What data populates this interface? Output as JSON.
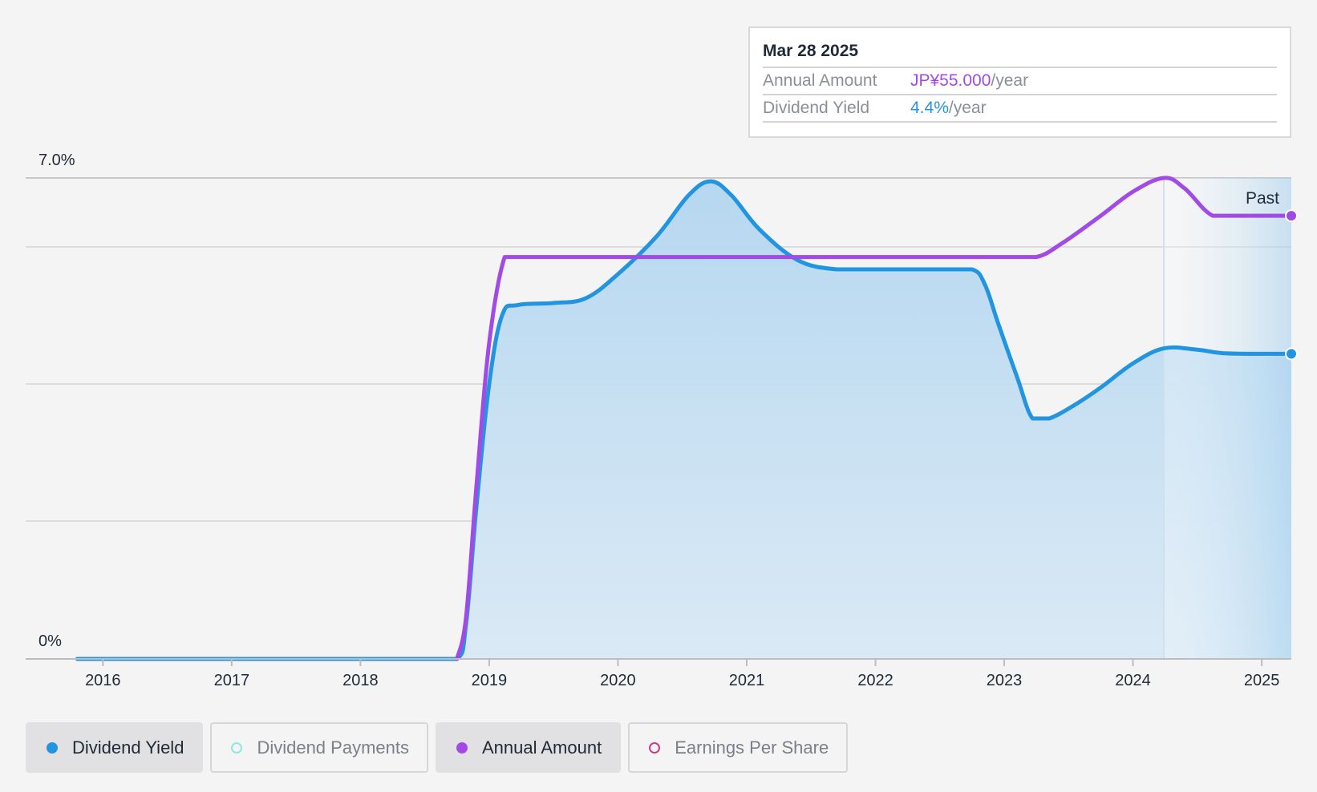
{
  "colors": {
    "yield": "#2394e0",
    "annual": "#a24ae6",
    "payments": "#8de8e0",
    "eps": "#cc3f86"
  },
  "tooltip": {
    "date": "Mar 28 2025",
    "rows": [
      {
        "key": "Annual Amount",
        "value": "JP¥55.000",
        "unit": "/year",
        "color": "purple"
      },
      {
        "key": "Dividend Yield",
        "value": "4.4%",
        "unit": "/year",
        "color": "blue"
      }
    ]
  },
  "legend": [
    {
      "label": "Dividend Yield",
      "active": true,
      "color": "#2394e0",
      "filled": true
    },
    {
      "label": "Dividend Payments",
      "active": false,
      "color": "#8de8e0",
      "filled": false
    },
    {
      "label": "Annual Amount",
      "active": true,
      "color": "#a24ae6",
      "filled": true
    },
    {
      "label": "Earnings Per Share",
      "active": false,
      "color": "#cc3f86",
      "filled": false
    }
  ],
  "chart_data": {
    "type": "line",
    "y_axis_labels": [
      "7.0%",
      "0%"
    ],
    "ylim": [
      0,
      7.0
    ],
    "xlim": [
      2015.4,
      2025.23
    ],
    "x_ticks": [
      2016,
      2017,
      2018,
      2019,
      2020,
      2021,
      2022,
      2023,
      2024,
      2025
    ],
    "grid": true,
    "past_region_start": 2024.24,
    "past_label": "Past",
    "series": [
      {
        "name": "Dividend Yield",
        "unit": "%",
        "area": true,
        "points": [
          [
            2015.8,
            0
          ],
          [
            2016.5,
            0
          ],
          [
            2017.5,
            0
          ],
          [
            2018.5,
            0
          ],
          [
            2018.75,
            0
          ],
          [
            2018.82,
            0.5
          ],
          [
            2018.9,
            2.2
          ],
          [
            2019.0,
            4.0
          ],
          [
            2019.1,
            5.0
          ],
          [
            2019.22,
            5.15
          ],
          [
            2019.5,
            5.18
          ],
          [
            2019.75,
            5.25
          ],
          [
            2020.0,
            5.6
          ],
          [
            2020.3,
            6.15
          ],
          [
            2020.55,
            6.75
          ],
          [
            2020.72,
            6.95
          ],
          [
            2020.88,
            6.75
          ],
          [
            2021.1,
            6.25
          ],
          [
            2021.4,
            5.8
          ],
          [
            2021.7,
            5.67
          ],
          [
            2022.0,
            5.67
          ],
          [
            2022.5,
            5.67
          ],
          [
            2022.75,
            5.67
          ],
          [
            2022.85,
            5.45
          ],
          [
            2022.95,
            4.9
          ],
          [
            2023.1,
            4.1
          ],
          [
            2023.22,
            3.5
          ],
          [
            2023.35,
            3.5
          ],
          [
            2023.55,
            3.7
          ],
          [
            2023.75,
            3.95
          ],
          [
            2024.0,
            4.3
          ],
          [
            2024.24,
            4.52
          ],
          [
            2024.5,
            4.5
          ],
          [
            2024.7,
            4.45
          ],
          [
            2025.0,
            4.44
          ],
          [
            2025.23,
            4.44
          ]
        ]
      },
      {
        "name": "Annual Amount",
        "unit": "JP¥",
        "area": false,
        "points": [
          [
            2018.75,
            0
          ],
          [
            2018.82,
            0.6
          ],
          [
            2018.9,
            2.5
          ],
          [
            2019.0,
            4.6
          ],
          [
            2019.12,
            5.85
          ],
          [
            2019.22,
            5.85
          ],
          [
            2020.0,
            5.85
          ],
          [
            2021.0,
            5.85
          ],
          [
            2022.0,
            5.85
          ],
          [
            2023.0,
            5.85
          ],
          [
            2023.25,
            5.85
          ],
          [
            2023.45,
            6.05
          ],
          [
            2023.75,
            6.45
          ],
          [
            2024.0,
            6.8
          ],
          [
            2024.24,
            7.0
          ],
          [
            2024.4,
            6.85
          ],
          [
            2024.62,
            6.45
          ],
          [
            2024.85,
            6.45
          ],
          [
            2025.23,
            6.45
          ]
        ]
      }
    ]
  }
}
